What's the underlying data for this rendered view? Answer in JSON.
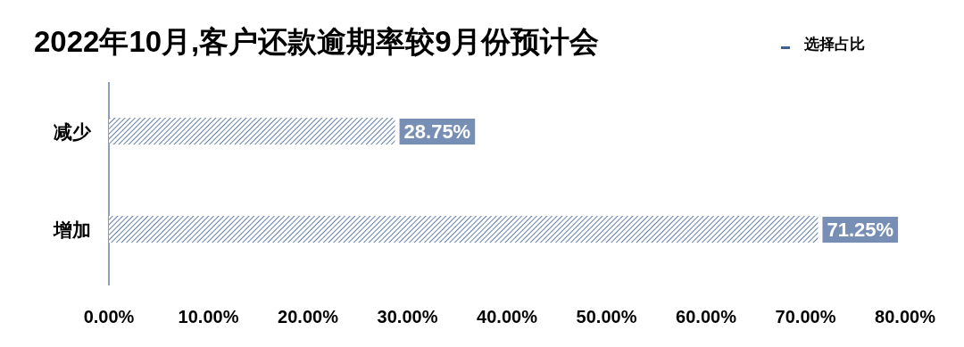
{
  "chart_data": {
    "type": "bar",
    "orientation": "horizontal",
    "title": "2022年10月,客户还款逾期率较9月份预计会",
    "categories": [
      "减少",
      "增加"
    ],
    "series": [
      {
        "name": "选择占比",
        "color": "#3f5f95",
        "values": [
          28.75,
          71.25
        ],
        "value_labels": [
          "28.75%",
          "71.25%"
        ]
      }
    ],
    "xlim": [
      0,
      80
    ],
    "xticks": [
      {
        "value": 0,
        "label": "0.00%"
      },
      {
        "value": 10,
        "label": "10.00%"
      },
      {
        "value": 20,
        "label": "20.00%"
      },
      {
        "value": 30,
        "label": "30.00%"
      },
      {
        "value": 40,
        "label": "40.00%"
      },
      {
        "value": 50,
        "label": "50.00%"
      },
      {
        "value": 60,
        "label": "60.00%"
      },
      {
        "value": 70,
        "label": "70.00%"
      },
      {
        "value": 80,
        "label": "80.00%"
      }
    ],
    "legend": "top right"
  }
}
